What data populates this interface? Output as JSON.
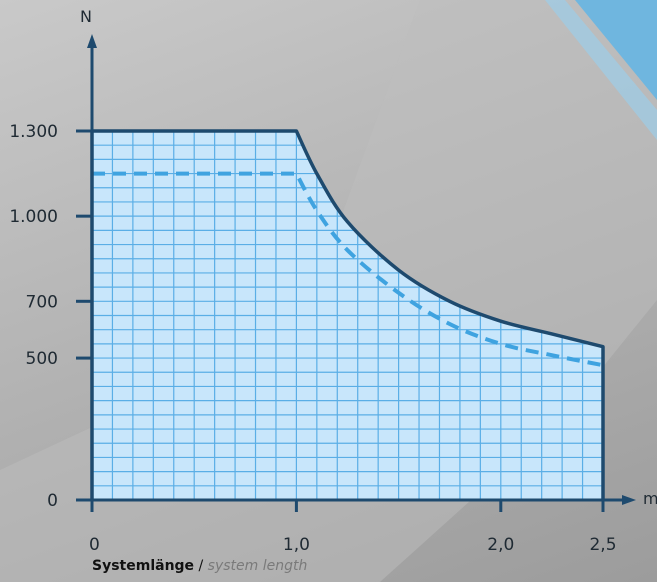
{
  "chart_data": {
    "type": "area",
    "x_unit": "m",
    "y_unit": "N",
    "xlim": [
      0,
      2.5
    ],
    "ylim": [
      0,
      1300
    ],
    "x_ticks": [
      {
        "value": 0,
        "label": "0"
      },
      {
        "value": 1.0,
        "label": "1,0"
      },
      {
        "value": 2.0,
        "label": "2,0"
      },
      {
        "value": 2.5,
        "label": "2,5"
      }
    ],
    "y_ticks": [
      {
        "value": 0,
        "label": "0"
      },
      {
        "value": 500,
        "label": "500"
      },
      {
        "value": 700,
        "label": "700"
      },
      {
        "value": 1000,
        "label": "1.000"
      },
      {
        "value": 1300,
        "label": "1.300"
      }
    ],
    "grid": true,
    "series": [
      {
        "style": "solid",
        "color": "#1e4a6e",
        "fill": "#c8e6fb",
        "points": [
          [
            0,
            1300
          ],
          [
            1.0,
            1300
          ],
          [
            1.1,
            1150
          ],
          [
            1.25,
            980
          ],
          [
            1.5,
            810
          ],
          [
            1.75,
            700
          ],
          [
            2.0,
            630
          ],
          [
            2.25,
            585
          ],
          [
            2.5,
            540
          ]
        ]
      },
      {
        "style": "dashed",
        "color": "#3fa3e0",
        "points": [
          [
            0,
            1150
          ],
          [
            1.0,
            1150
          ],
          [
            1.1,
            1020
          ],
          [
            1.25,
            880
          ],
          [
            1.5,
            730
          ],
          [
            1.75,
            620
          ],
          [
            2.0,
            550
          ],
          [
            2.25,
            510
          ],
          [
            2.5,
            475
          ]
        ]
      }
    ]
  },
  "caption": {
    "de": "Systemlänge",
    "sep": " / ",
    "en": "system length"
  }
}
